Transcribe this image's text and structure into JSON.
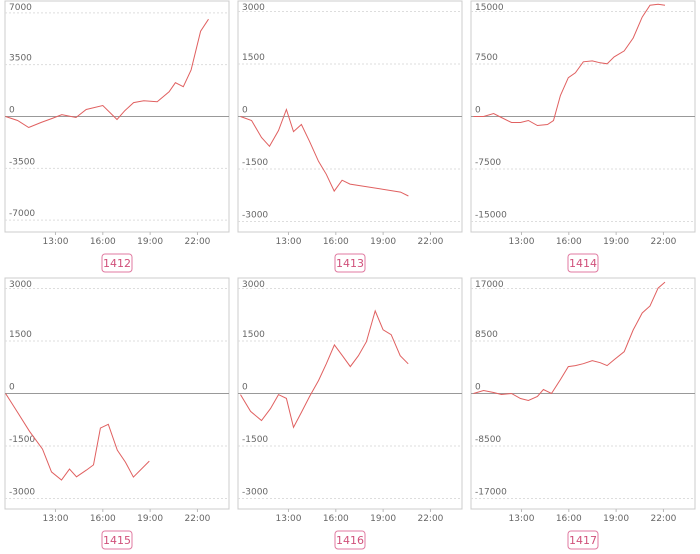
{
  "chart_data": [
    {
      "type": "line",
      "title": "1412",
      "color": "#e06060",
      "x": [
        9.84,
        10.6,
        11.3,
        12.1,
        12.8,
        13.4,
        14.3,
        14.95,
        16.0,
        16.9,
        17.4,
        17.95,
        18.6,
        19.45,
        20.2,
        20.6,
        21.1,
        21.6,
        22.2,
        22.7
      ],
      "values": [
        0,
        -270,
        -740,
        -400,
        -130,
        130,
        -70,
        470,
        740,
        -200,
        400,
        940,
        1070,
        1000,
        1670,
        2280,
        2010,
        3150,
        5760,
        6570
      ],
      "xlim": [
        9.8,
        24
      ],
      "xticks": [
        {
          "value": 13,
          "label": "13:00"
        },
        {
          "value": 16,
          "label": "16:00"
        },
        {
          "value": 19,
          "label": "19:00"
        },
        {
          "value": 22,
          "label": "22:00"
        }
      ],
      "ylim": [
        -7800,
        7800
      ],
      "yticks": [
        7000,
        3500,
        0,
        -3500,
        -7000
      ],
      "grid": true
    },
    {
      "type": "line",
      "title": "1413",
      "color": "#e06060",
      "x": [
        9.96,
        10.66,
        11.29,
        11.8,
        12.37,
        12.87,
        13.32,
        13.82,
        14.33,
        14.9,
        15.4,
        15.9,
        16.4,
        16.9,
        20.1,
        20.6
      ],
      "values": [
        0,
        -114,
        -600,
        -850,
        -400,
        200,
        -430,
        -230,
        -710,
        -1280,
        -1650,
        -2130,
        -1820,
        -1930,
        -2160,
        -2270
      ],
      "xlim": [
        9.8,
        24
      ],
      "xticks": [
        {
          "value": 13,
          "label": "13:00"
        },
        {
          "value": 16,
          "label": "16:00"
        },
        {
          "value": 19,
          "label": "19:00"
        },
        {
          "value": 22,
          "label": "22:00"
        }
      ],
      "ylim": [
        -3300,
        3300
      ],
      "yticks": [
        3000,
        1500,
        0,
        -1500,
        -3000
      ],
      "grid": true
    },
    {
      "type": "line",
      "title": "1414",
      "color": "#e06060",
      "x": [
        9.96,
        10.6,
        11.23,
        11.73,
        12.37,
        12.94,
        13.44,
        14.01,
        14.65,
        15.03,
        15.47,
        15.97,
        16.42,
        16.92,
        17.49,
        17.99,
        18.43,
        18.87,
        19.51,
        20.08,
        20.65,
        21.15,
        21.66,
        22.1
      ],
      "values": [
        0,
        0,
        430,
        -140,
        -850,
        -850,
        -570,
        -1280,
        -1140,
        -570,
        3000,
        5540,
        6250,
        7810,
        7950,
        7670,
        7530,
        8520,
        9370,
        11220,
        14200,
        15900,
        16040,
        15900
      ],
      "xlim": [
        9.8,
        24
      ],
      "xticks": [
        {
          "value": 13,
          "label": "13:00"
        },
        {
          "value": 16,
          "label": "16:00"
        },
        {
          "value": 19,
          "label": "19:00"
        },
        {
          "value": 22,
          "label": "22:00"
        }
      ],
      "ylim": [
        -16500,
        16500
      ],
      "yticks": [
        15000,
        7500,
        0,
        -7500,
        -15000
      ],
      "grid": true
    },
    {
      "type": "line",
      "title": "1415",
      "color": "#e06060",
      "x": [
        9.84,
        10.6,
        11.35,
        12.18,
        12.75,
        13.38,
        13.89,
        14.33,
        14.96,
        15.41,
        15.85,
        16.35,
        16.92,
        17.43,
        17.94,
        18.95
      ],
      "values": [
        0,
        -540,
        -1080,
        -1590,
        -2240,
        -2470,
        -2160,
        -2380,
        -2190,
        -2040,
        -990,
        -880,
        -1620,
        -1960,
        -2390,
        -1930
      ],
      "xlim": [
        9.8,
        24
      ],
      "xticks": [
        {
          "value": 13,
          "label": "13:00"
        },
        {
          "value": 16,
          "label": "16:00"
        },
        {
          "value": 19,
          "label": "19:00"
        },
        {
          "value": 22,
          "label": "22:00"
        }
      ],
      "ylim": [
        -3300,
        3300
      ],
      "yticks": [
        3000,
        1500,
        0,
        -1500,
        -3000
      ],
      "grid": true
    },
    {
      "type": "line",
      "title": "1416",
      "color": "#e06060",
      "x": [
        9.96,
        10.6,
        11.29,
        11.86,
        12.37,
        12.87,
        13.32,
        13.82,
        14.33,
        14.9,
        15.4,
        15.91,
        16.42,
        16.92,
        17.43,
        17.94,
        18.5,
        19.0,
        19.51,
        20.08,
        20.59
      ],
      "values": [
        -30,
        -510,
        -770,
        -430,
        -30,
        -140,
        -970,
        -540,
        -90,
        370,
        850,
        1390,
        1080,
        770,
        1080,
        1480,
        2360,
        1820,
        1680,
        1080,
        850
      ],
      "xlim": [
        9.8,
        24
      ],
      "xticks": [
        {
          "value": 13,
          "label": "13:00"
        },
        {
          "value": 16,
          "label": "16:00"
        },
        {
          "value": 19,
          "label": "19:00"
        },
        {
          "value": 22,
          "label": "22:00"
        }
      ],
      "ylim": [
        -3300,
        3300
      ],
      "yticks": [
        3000,
        1500,
        0,
        -1500,
        -3000
      ],
      "grid": true
    },
    {
      "type": "line",
      "title": "1417",
      "color": "#e06060",
      "x": [
        9.96,
        10.6,
        11.23,
        11.73,
        12.37,
        12.94,
        13.44,
        14.01,
        14.39,
        14.9,
        15.47,
        15.97,
        16.42,
        16.92,
        17.49,
        17.99,
        18.43,
        18.87,
        19.51,
        20.08,
        20.65,
        21.15,
        21.66,
        22.1
      ],
      "values": [
        0,
        480,
        160,
        -160,
        0,
        -810,
        -1130,
        -480,
        640,
        0,
        2250,
        4350,
        4510,
        4830,
        5310,
        4990,
        4510,
        5480,
        6760,
        10300,
        13040,
        14170,
        17070,
        18030
      ],
      "xlim": [
        9.8,
        24
      ],
      "xticks": [
        {
          "value": 13,
          "label": "13:00"
        },
        {
          "value": 16,
          "label": "16:00"
        },
        {
          "value": 19,
          "label": "19:00"
        },
        {
          "value": 22,
          "label": "22:00"
        }
      ],
      "ylim": [
        -18700,
        18700
      ],
      "yticks": [
        17000,
        8500,
        0,
        -8500,
        -17000
      ],
      "grid": true
    }
  ]
}
